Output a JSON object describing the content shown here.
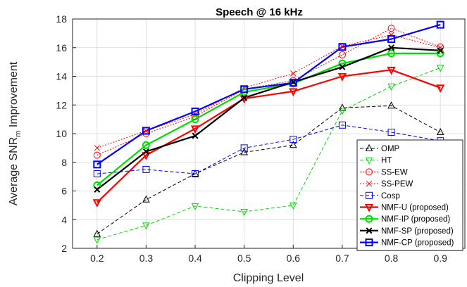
{
  "chart_data": {
    "type": "line",
    "title": "Speech @ 16 kHz",
    "xlabel": "Clipping Level",
    "ylabel": {
      "main": "Average SNR",
      "sub": "m",
      "tail": " Improvement"
    },
    "x": [
      0.2,
      0.3,
      0.4,
      0.5,
      0.6,
      0.7,
      0.8,
      0.9
    ],
    "x_ticks": [
      "0.2",
      "0.3",
      "0.4",
      "0.5",
      "0.6",
      "0.7",
      "0.8",
      "0.9"
    ],
    "xlim": [
      0.15,
      0.95
    ],
    "ylim": [
      2,
      18
    ],
    "y_ticks": [
      2,
      4,
      6,
      8,
      10,
      12,
      14,
      16,
      18
    ],
    "grid": true,
    "legend_position": "bottom-right",
    "series": [
      {
        "name": "OMP",
        "color": "#000000",
        "dash": "dashed",
        "marker": "triangle-up",
        "width": 1,
        "values": [
          3.0,
          5.4,
          7.2,
          8.7,
          9.2,
          11.8,
          11.95,
          10.1
        ]
      },
      {
        "name": "HT",
        "color": "#00dd00",
        "dash": "dashed",
        "marker": "triangle-down",
        "width": 1,
        "values": [
          2.6,
          3.6,
          4.95,
          4.55,
          5.0,
          11.6,
          13.3,
          14.6
        ]
      },
      {
        "name": "SS-EW",
        "color": "#ff0000",
        "dash": "dotted",
        "marker": "circle",
        "width": 1,
        "values": [
          8.5,
          10.0,
          11.2,
          13.1,
          13.7,
          15.5,
          17.35,
          16.05
        ]
      },
      {
        "name": "SS-PEW",
        "color": "#ff0000",
        "dash": "dotted",
        "marker": "x",
        "width": 1,
        "values": [
          9.0,
          10.2,
          11.35,
          13.2,
          14.2,
          16.1,
          16.9,
          16.0
        ]
      },
      {
        "name": "Cosp",
        "color": "#0000ff",
        "dash": "dashed",
        "marker": "square",
        "width": 1,
        "values": [
          7.2,
          7.5,
          7.2,
          9.0,
          9.6,
          10.6,
          10.1,
          9.5
        ]
      },
      {
        "name": "NMF-U (proposed)",
        "color": "#ff0000",
        "dash": "solid",
        "marker": "triangle-down",
        "width": 2,
        "values": [
          5.2,
          8.5,
          10.35,
          12.45,
          12.95,
          14.0,
          14.45,
          13.2
        ]
      },
      {
        "name": "NMF-IP (proposed)",
        "color": "#00dd00",
        "dash": "solid",
        "marker": "circle",
        "width": 2,
        "values": [
          6.4,
          9.2,
          11.0,
          12.9,
          13.5,
          14.9,
          15.6,
          15.6
        ]
      },
      {
        "name": "NMF-SP (proposed)",
        "color": "#000000",
        "dash": "solid",
        "marker": "x",
        "width": 2,
        "values": [
          6.1,
          8.75,
          9.85,
          12.5,
          13.6,
          14.65,
          16.0,
          15.8
        ]
      },
      {
        "name": "NMF-CP (proposed)",
        "color": "#0000ff",
        "dash": "solid",
        "marker": "square",
        "width": 2,
        "values": [
          7.85,
          10.2,
          11.55,
          13.1,
          13.55,
          16.05,
          16.6,
          17.6
        ]
      }
    ]
  }
}
